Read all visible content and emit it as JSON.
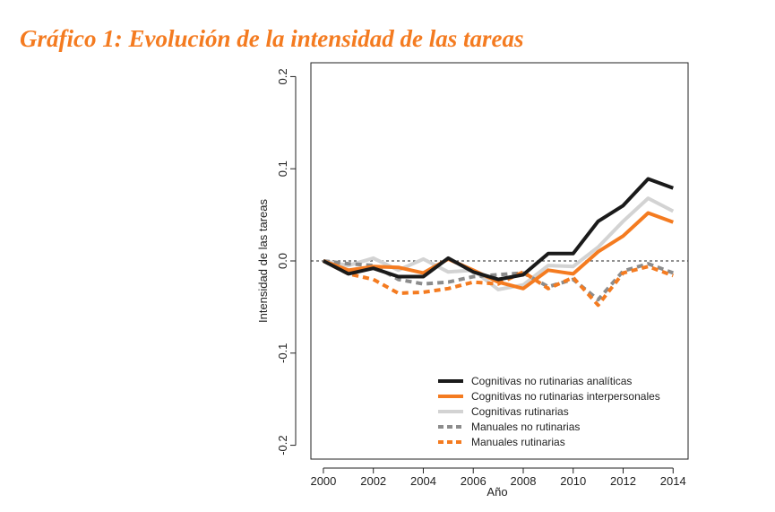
{
  "page": {
    "title": "Gráfico 1: Evolución de la intensidad de las tareas"
  },
  "chart_data": {
    "type": "line",
    "xlabel": "Año",
    "ylabel": "Intensidad de las tareas",
    "xlim": [
      1999.5,
      2014.6
    ],
    "ylim": [
      -0.215,
      0.215
    ],
    "xticks": [
      2000,
      2002,
      2004,
      2006,
      2008,
      2010,
      2012,
      2014
    ],
    "xtick_labels": [
      "2000",
      "2002",
      "2004",
      "2006",
      "2008",
      "2010",
      "2012",
      "2014"
    ],
    "yticks": [
      -0.2,
      -0.1,
      0.0,
      0.1,
      0.2
    ],
    "ytick_labels": [
      "-0.2",
      "-0.1",
      "0.0",
      "0.1",
      "0.2"
    ],
    "reference_line": {
      "y": 0.0,
      "style": "dashed"
    },
    "legend_position": "bottom-right",
    "x": [
      2000,
      2001,
      2002,
      2003,
      2004,
      2005,
      2006,
      2007,
      2008,
      2009,
      2010,
      2011,
      2012,
      2013,
      2014
    ],
    "series": [
      {
        "name": "Cognitivas no rutinarias analíticas",
        "color": "#1a1a1a",
        "dash": false,
        "values": [
          0.0,
          -0.014,
          -0.008,
          -0.017,
          -0.017,
          0.003,
          -0.012,
          -0.02,
          -0.015,
          0.008,
          0.008,
          0.043,
          0.06,
          0.089,
          0.079
        ]
      },
      {
        "name": "Cognitivas no rutinarias interpersonales",
        "color": "#f47b20",
        "dash": false,
        "values": [
          0.0,
          -0.01,
          -0.006,
          -0.007,
          -0.013,
          0.002,
          -0.01,
          -0.023,
          -0.03,
          -0.01,
          -0.014,
          0.01,
          0.027,
          0.052,
          0.042
        ]
      },
      {
        "name": "Cognitivas rutinarias",
        "color": "#d3d3d3",
        "dash": false,
        "values": [
          0.0,
          -0.005,
          0.003,
          -0.01,
          0.002,
          -0.012,
          -0.01,
          -0.031,
          -0.026,
          -0.005,
          -0.006,
          0.015,
          0.043,
          0.068,
          0.054
        ]
      },
      {
        "name": "Manuales no rutinarias",
        "color": "#8c8c8c",
        "dash": true,
        "values": [
          0.0,
          -0.003,
          -0.005,
          -0.02,
          -0.025,
          -0.023,
          -0.017,
          -0.015,
          -0.013,
          -0.028,
          -0.02,
          -0.042,
          -0.011,
          -0.003,
          -0.013
        ]
      },
      {
        "name": "Manuales rutinarias",
        "color": "#f47b20",
        "dash": true,
        "values": [
          0.0,
          -0.014,
          -0.02,
          -0.035,
          -0.034,
          -0.03,
          -0.023,
          -0.025,
          -0.012,
          -0.03,
          -0.018,
          -0.048,
          -0.013,
          -0.006,
          -0.016
        ]
      }
    ]
  }
}
